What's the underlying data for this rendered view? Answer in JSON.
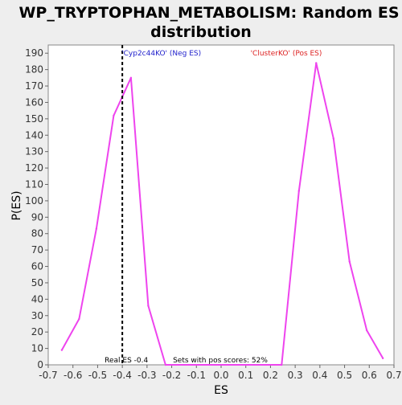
{
  "colors": {
    "background": "#eeeeee",
    "plot_background": "#ffffff",
    "curve": "#ee44ee",
    "neg_label": "#2222cc",
    "pos_label": "#dd2222",
    "real_es_line": "#000000"
  },
  "chart_data": {
    "type": "line",
    "title_line1": "WP_TRYPTOPHAN_METABOLISM: Random ES",
    "title_line2": "distribution",
    "xlabel": "ES",
    "ylabel": "P(ES)",
    "xlim": [
      -0.7,
      0.7
    ],
    "ylim": [
      0,
      195
    ],
    "xticks": [
      -0.7,
      -0.6,
      -0.5,
      -0.4,
      -0.3,
      -0.2,
      -0.1,
      0.0,
      0.1,
      0.2,
      0.3,
      0.4,
      0.5,
      0.6,
      0.7
    ],
    "xtick_labels": [
      "-0.7",
      "-0.6",
      "-0.5",
      "-0.4",
      "-0.3",
      "-0.2",
      "-0.1",
      "0.0",
      "0.1",
      "0.2",
      "0.3",
      "0.4",
      "0.5",
      "0.6",
      "0.7"
    ],
    "yticks": [
      0,
      10,
      20,
      30,
      40,
      50,
      60,
      70,
      80,
      90,
      100,
      110,
      120,
      130,
      140,
      150,
      160,
      170,
      180,
      190
    ],
    "grid": false,
    "series": [
      {
        "x": [
          -0.645,
          -0.575,
          -0.505,
          -0.435,
          -0.365,
          -0.295,
          -0.225,
          0.245,
          0.315,
          0.385,
          0.455,
          0.52,
          0.59,
          0.655
        ],
        "y": [
          9,
          28,
          83,
          152,
          175,
          36,
          0,
          0,
          106,
          184,
          138,
          63,
          21,
          4
        ]
      }
    ],
    "real_es": -0.4,
    "annotations": {
      "neg_label": "'Cyp2c44KO' (Neg ES)",
      "pos_label": "'ClusterKO' (Pos ES)",
      "real_es_label": "Real ES -0.4",
      "pos_scores_label": "Sets with pos scores: 52%"
    }
  }
}
